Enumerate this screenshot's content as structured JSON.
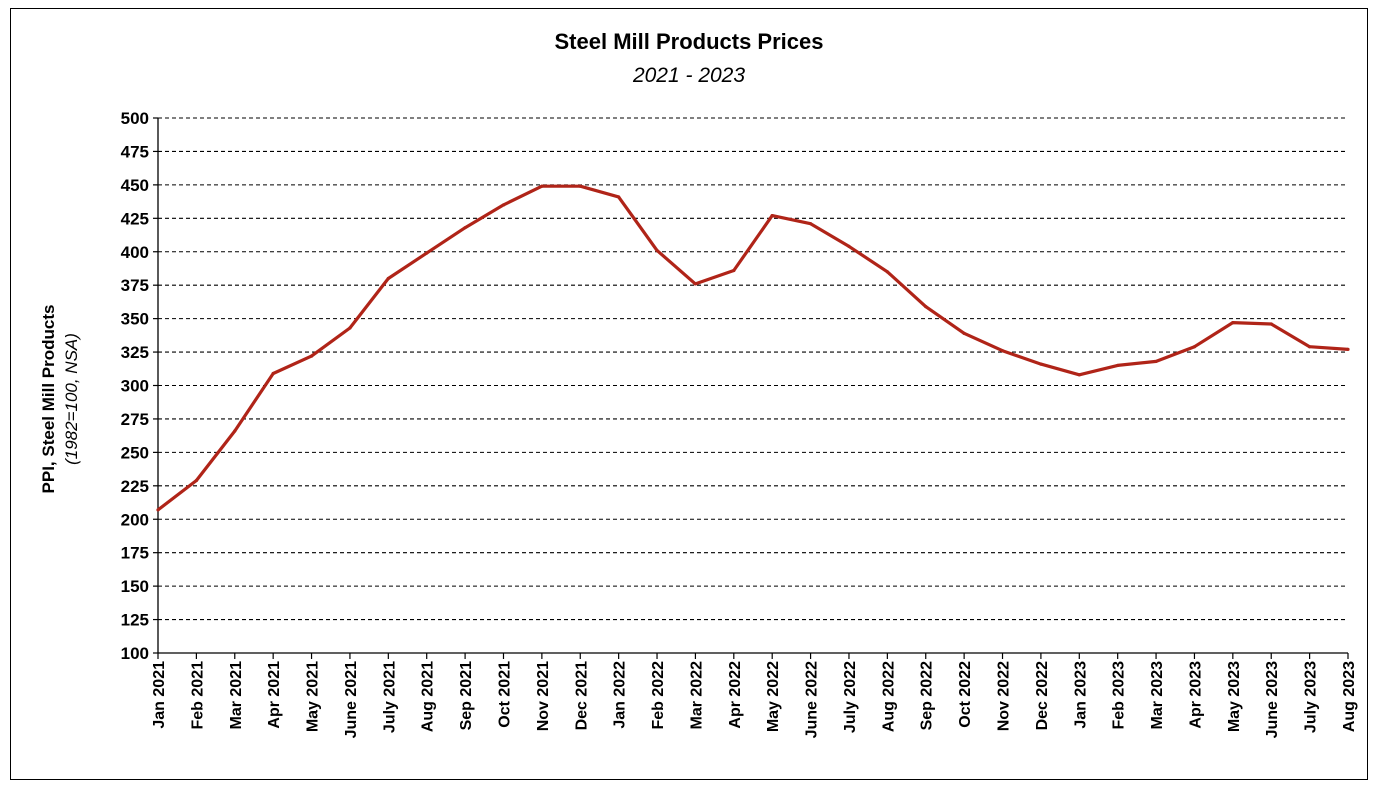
{
  "chart_data": {
    "type": "line",
    "title": "Steel Mill Products Prices",
    "subtitle": "2021 - 2023",
    "ylabel": "PPI, Steel Mill Products",
    "ylabel_sub": "(1982=100, NSA)",
    "xlabel": "",
    "ylim": [
      100,
      500
    ],
    "ytick_step": 25,
    "grid": "horizontal dashed",
    "legend": "none",
    "line_color": "#B02418",
    "categories": [
      "Jan 2021",
      "Feb 2021",
      "Mar 2021",
      "Apr 2021",
      "May 2021",
      "June 2021",
      "July 2021",
      "Aug 2021",
      "Sep 2021",
      "Oct 2021",
      "Nov 2021",
      "Dec 2021",
      "Jan 2022",
      "Feb 2022",
      "Mar 2022",
      "Apr 2022",
      "May 2022",
      "June 2022",
      "July 2022",
      "Aug 2022",
      "Sep 2022",
      "Oct 2022",
      "Nov 2022",
      "Dec 2022",
      "Jan 2023",
      "Feb 2023",
      "Mar 2023",
      "Apr 2023",
      "May 2023",
      "June 2023",
      "July 2023",
      "Aug 2023"
    ],
    "values": [
      207,
      229,
      266,
      309,
      322,
      343,
      380,
      399,
      418,
      435,
      449,
      449,
      441,
      401,
      376,
      386,
      427,
      421,
      404,
      385,
      359,
      339,
      326,
      316,
      308,
      315,
      318,
      329,
      347,
      346,
      329,
      327
    ]
  }
}
